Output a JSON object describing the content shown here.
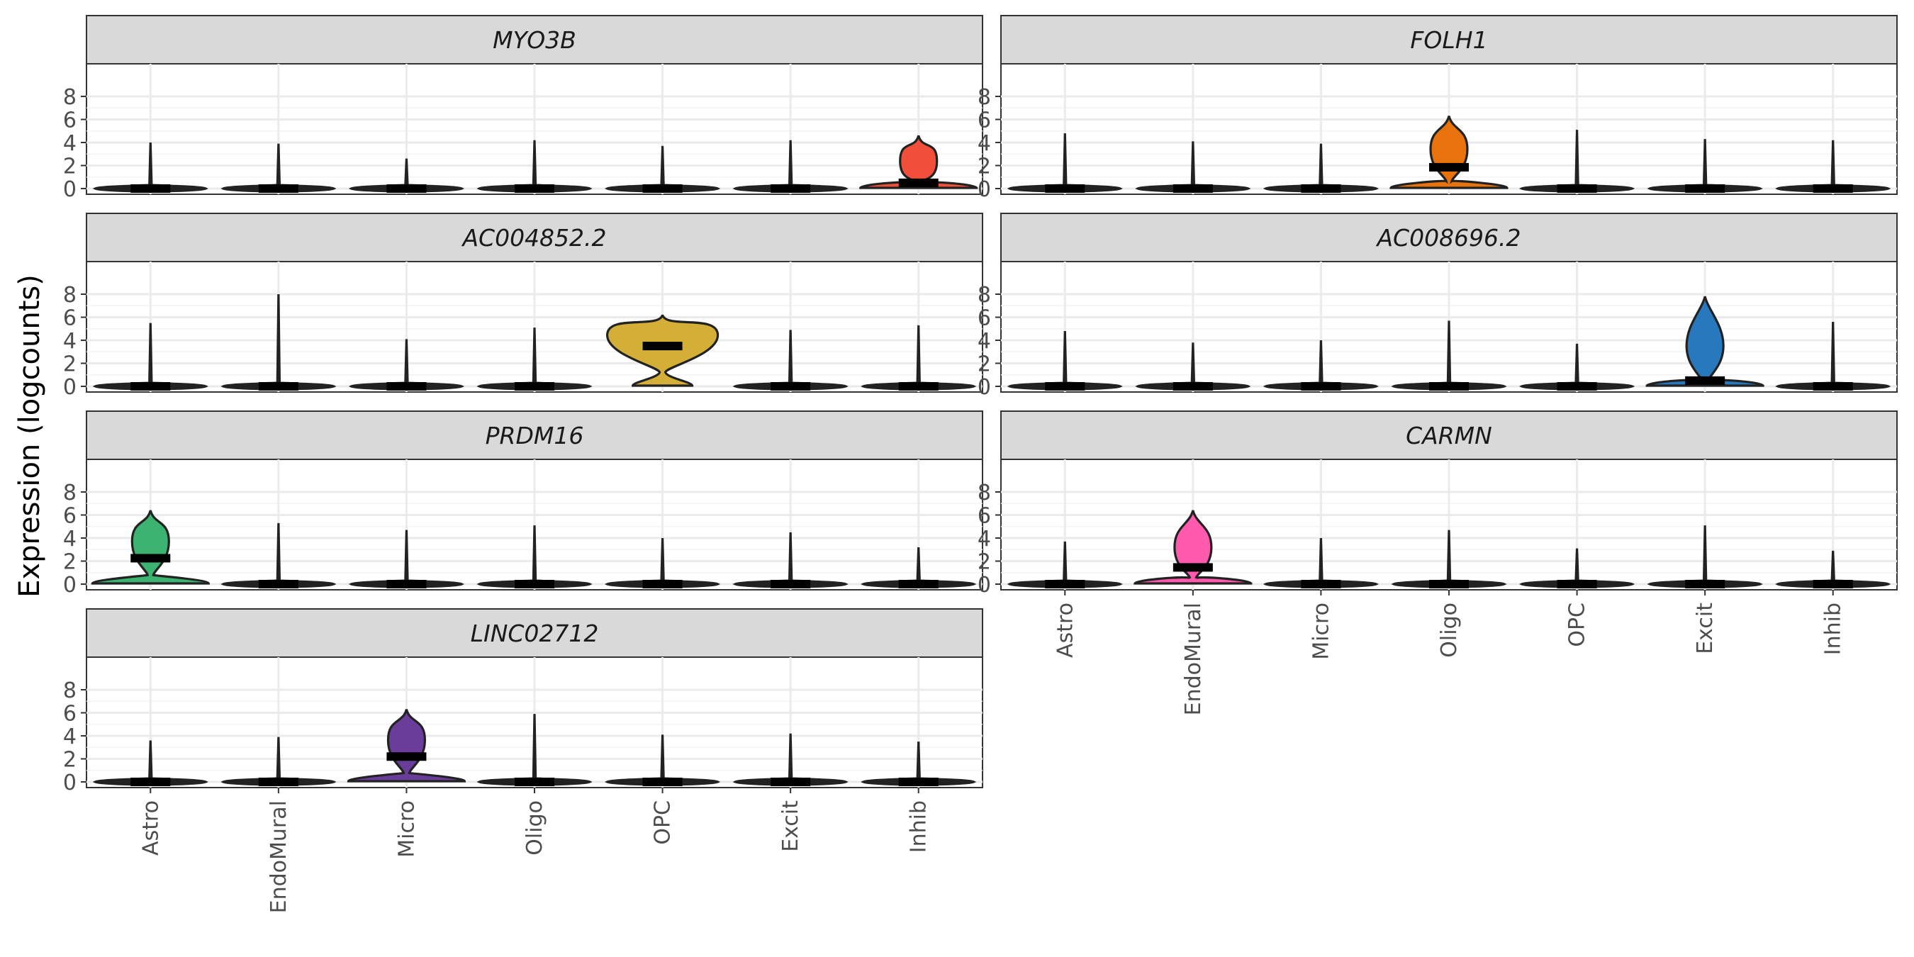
{
  "chart_data": {
    "type": "violin",
    "ylabel": "Expression (logcounts)",
    "xlabel": "",
    "ylim": [
      0,
      8
    ],
    "y_ticks": [
      0,
      2,
      4,
      6,
      8
    ],
    "categories": [
      "Astro",
      "EndoMural",
      "Micro",
      "Oligo",
      "OPC",
      "Excit",
      "Inhib"
    ],
    "grid": true,
    "facets": [
      {
        "gene": "MYO3B",
        "highlight": "Inhib",
        "highlight_color": "#f0503a",
        "max": [
          4.0,
          3.9,
          2.6,
          4.2,
          3.7,
          4.2,
          4.6
        ],
        "median": [
          0,
          0,
          0,
          0,
          0,
          0,
          0.5
        ]
      },
      {
        "gene": "FOLH1",
        "highlight": "Oligo",
        "highlight_color": "#e8720c",
        "max": [
          4.8,
          4.1,
          3.9,
          6.3,
          5.1,
          4.3,
          4.2
        ],
        "median": [
          0,
          0,
          0,
          1.85,
          0,
          0,
          0
        ]
      },
      {
        "gene": "AC004852.2",
        "highlight": "OPC",
        "highlight_color": "#d4af37",
        "max": [
          5.5,
          8.0,
          4.1,
          5.1,
          6.2,
          4.9,
          5.3
        ],
        "median": [
          0,
          0,
          0,
          0,
          3.5,
          0,
          0
        ]
      },
      {
        "gene": "AC008696.2",
        "highlight": "Excit",
        "highlight_color": "#2878bd",
        "max": [
          4.8,
          3.8,
          4.0,
          5.7,
          3.7,
          7.8,
          5.6
        ],
        "median": [
          0,
          0,
          0,
          0,
          0,
          0.5,
          0
        ]
      },
      {
        "gene": "PRDM16",
        "highlight": "Astro",
        "highlight_color": "#3cb371",
        "max": [
          6.4,
          5.3,
          4.7,
          5.1,
          4.0,
          4.5,
          3.2
        ],
        "median": [
          2.25,
          0,
          0,
          0,
          0,
          0,
          0
        ]
      },
      {
        "gene": "CARMN",
        "highlight": "EndoMural",
        "highlight_color": "#ff5aad",
        "max": [
          3.7,
          6.4,
          4.0,
          4.7,
          3.1,
          5.1,
          2.9
        ],
        "median": [
          0,
          1.45,
          0,
          0,
          0,
          0,
          0
        ]
      },
      {
        "gene": "LINC02712",
        "highlight": "Micro",
        "highlight_color": "#6a3d9a",
        "max": [
          3.6,
          3.9,
          6.3,
          5.9,
          4.1,
          4.2,
          3.5
        ],
        "median": [
          0,
          0,
          2.2,
          0,
          0,
          0,
          0
        ]
      }
    ]
  }
}
